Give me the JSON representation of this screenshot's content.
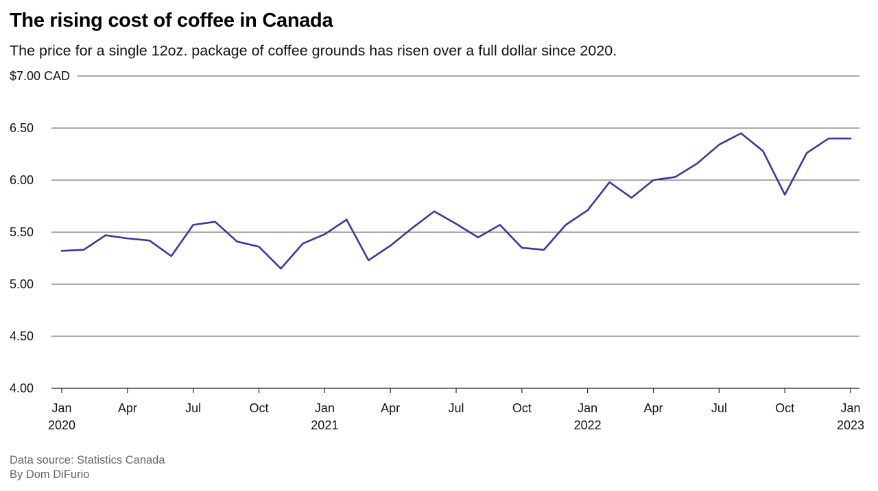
{
  "title": "The rising cost of coffee in Canada",
  "subtitle": "The price for a single 12oz. package of coffee grounds has risen over a full dollar since 2020.",
  "footer": {
    "source": "Data source: Statistics Canada",
    "byline": "By Dom DiFurio"
  },
  "colors": {
    "line": "#3a35a3",
    "grid": "#555555",
    "text": "#111111",
    "muted": "#666666"
  },
  "chart_data": {
    "type": "line",
    "title": "The rising cost of coffee in Canada",
    "subtitle": "The price for a single 12oz. package of coffee grounds has risen over a full dollar since 2020.",
    "xlabel": "",
    "ylabel": "",
    "ylim": [
      4.0,
      7.0
    ],
    "grid": "horizontal",
    "y_ticks": [
      {
        "value": 4.0,
        "label": "4.00"
      },
      {
        "value": 4.5,
        "label": "4.50"
      },
      {
        "value": 5.0,
        "label": "5.00"
      },
      {
        "value": 5.5,
        "label": "5.50"
      },
      {
        "value": 6.0,
        "label": "6.00"
      },
      {
        "value": 6.5,
        "label": "6.50"
      },
      {
        "value": 7.0,
        "label": "$7.00 CAD"
      }
    ],
    "x_ticks": [
      {
        "date": "2020-01",
        "label": "Jan",
        "year": "2020"
      },
      {
        "date": "2020-04",
        "label": "Apr",
        "year": ""
      },
      {
        "date": "2020-07",
        "label": "Jul",
        "year": ""
      },
      {
        "date": "2020-10",
        "label": "Oct",
        "year": ""
      },
      {
        "date": "2021-01",
        "label": "Jan",
        "year": "2021"
      },
      {
        "date": "2021-04",
        "label": "Apr",
        "year": ""
      },
      {
        "date": "2021-07",
        "label": "Jul",
        "year": ""
      },
      {
        "date": "2021-10",
        "label": "Oct",
        "year": ""
      },
      {
        "date": "2022-01",
        "label": "Jan",
        "year": "2022"
      },
      {
        "date": "2022-04",
        "label": "Apr",
        "year": ""
      },
      {
        "date": "2022-07",
        "label": "Jul",
        "year": ""
      },
      {
        "date": "2022-10",
        "label": "Oct",
        "year": ""
      },
      {
        "date": "2023-01",
        "label": "Jan",
        "year": "2023"
      }
    ],
    "series": [
      {
        "x": [
          "2020-01",
          "2020-02",
          "2020-03",
          "2020-04",
          "2020-05",
          "2020-06",
          "2020-07",
          "2020-08",
          "2020-09",
          "2020-10",
          "2020-11",
          "2020-12",
          "2021-01",
          "2021-02",
          "2021-03",
          "2021-04",
          "2021-05",
          "2021-06",
          "2021-07",
          "2021-08",
          "2021-09",
          "2021-10",
          "2021-11",
          "2021-12",
          "2022-01",
          "2022-02",
          "2022-03",
          "2022-04",
          "2022-05",
          "2022-06",
          "2022-07",
          "2022-08",
          "2022-09",
          "2022-10",
          "2022-11",
          "2022-12",
          "2023-01"
        ],
        "values": [
          5.32,
          5.33,
          5.47,
          5.44,
          5.42,
          5.27,
          5.57,
          5.6,
          5.41,
          5.36,
          5.15,
          5.39,
          5.48,
          5.62,
          5.23,
          5.37,
          5.54,
          5.7,
          5.58,
          5.45,
          5.57,
          5.35,
          5.33,
          5.57,
          5.71,
          5.98,
          5.83,
          6.0,
          6.03,
          6.16,
          6.34,
          6.45,
          6.28,
          5.86,
          6.26,
          6.4,
          6.4
        ]
      }
    ]
  }
}
